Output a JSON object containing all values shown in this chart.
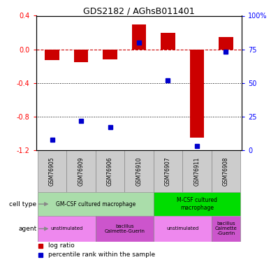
{
  "title": "GDS2182 / AGhsB011401",
  "samples": [
    "GSM76905",
    "GSM76909",
    "GSM76906",
    "GSM76910",
    "GSM76907",
    "GSM76911",
    "GSM76908"
  ],
  "log_ratio": [
    -0.13,
    -0.15,
    -0.12,
    0.3,
    0.2,
    -1.05,
    0.15
  ],
  "percentile_rank": [
    8,
    22,
    17,
    80,
    52,
    3,
    73
  ],
  "ylim_left": [
    -1.2,
    0.4
  ],
  "ylim_right": [
    0,
    100
  ],
  "left_ticks": [
    0.4,
    0.0,
    -0.4,
    -0.8,
    -1.2
  ],
  "right_ticks": [
    100,
    75,
    50,
    25,
    0
  ],
  "bar_color": "#cc0000",
  "dot_color": "#0000cc",
  "dashed_color": "#cc0000",
  "grid_color": "#000000",
  "cell_type_groups": [
    {
      "label": "GM-CSF cultured macrophage",
      "start": 0,
      "end": 4,
      "color": "#aaddaa"
    },
    {
      "label": "M-CSF cultured\nmacrophage",
      "start": 4,
      "end": 7,
      "color": "#00dd00"
    }
  ],
  "agent_groups": [
    {
      "label": "unstimulated",
      "start": 0,
      "end": 2,
      "color": "#ee88ee"
    },
    {
      "label": "bacillus\nCalmette-Guerin",
      "start": 2,
      "end": 4,
      "color": "#cc55cc"
    },
    {
      "label": "unstimulated",
      "start": 4,
      "end": 6,
      "color": "#ee88ee"
    },
    {
      "label": "bacillus\nCalmette\n-Guerin",
      "start": 6,
      "end": 7,
      "color": "#cc55cc"
    }
  ]
}
